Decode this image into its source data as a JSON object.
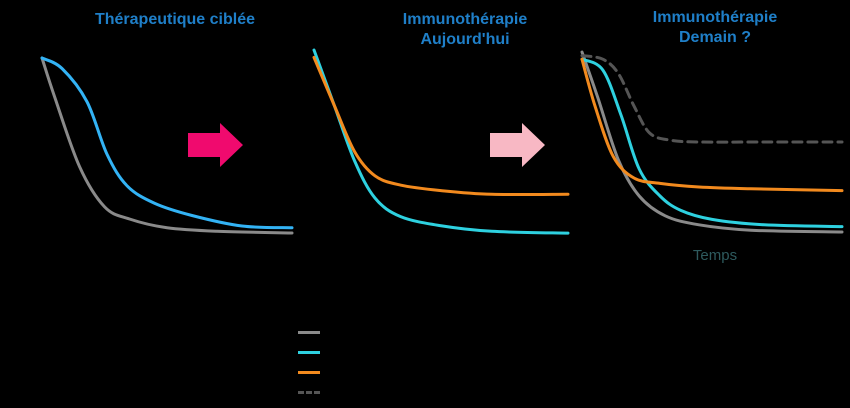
{
  "panels": [
    {
      "title": "Thérapeutique ciblée"
    },
    {
      "title": "Immunothérapie\nAujourd'hui"
    },
    {
      "title": "Immunothérapie\nDemain ?"
    }
  ],
  "x_axis_label": "Temps",
  "arrows": [
    {
      "color": "#f00a6e"
    },
    {
      "color": "#f8b8c4"
    }
  ],
  "colors": {
    "title": "#1f7fc8",
    "gray": "#8a8a8a",
    "blue": "#33b3f5",
    "cyan": "#2ed1e0",
    "orange": "#f28a1e",
    "dashed": "#555555",
    "axis_label": "#2e5a5e"
  },
  "legend": [
    {
      "color": "#8a8a8a",
      "style": "solid"
    },
    {
      "color": "#2ed1e0",
      "style": "solid"
    },
    {
      "color": "#f28a1e",
      "style": "solid"
    },
    {
      "color": "#555555",
      "style": "dashed"
    }
  ],
  "chart_data": [
    {
      "type": "line",
      "title": "Thérapeutique ciblée",
      "xlim": [
        0,
        1
      ],
      "ylim": [
        0,
        1
      ],
      "series": [
        {
          "color": "#8a8a8a",
          "style": "solid",
          "x": [
            0,
            0.05,
            0.15,
            0.25,
            0.35,
            0.5,
            0.7,
            1.0
          ],
          "y": [
            1.0,
            0.78,
            0.38,
            0.15,
            0.08,
            0.03,
            0.01,
            0.0
          ]
        },
        {
          "color": "#33b3f5",
          "style": "solid",
          "x": [
            0,
            0.08,
            0.18,
            0.26,
            0.34,
            0.45,
            0.6,
            0.8,
            1.0
          ],
          "y": [
            1.0,
            0.94,
            0.75,
            0.45,
            0.27,
            0.17,
            0.1,
            0.04,
            0.03
          ]
        }
      ]
    },
    {
      "type": "line",
      "title": "Immunothérapie Aujourd'hui",
      "xlim": [
        0,
        1
      ],
      "ylim": [
        0,
        1
      ],
      "series": [
        {
          "color": "#2ed1e0",
          "style": "solid",
          "x": [
            0,
            0.08,
            0.16,
            0.24,
            0.34,
            0.5,
            0.7,
            1.0
          ],
          "y": [
            1.0,
            0.7,
            0.4,
            0.2,
            0.1,
            0.05,
            0.02,
            0.01
          ]
        },
        {
          "color": "#f28a1e",
          "style": "solid",
          "x": [
            0,
            0.08,
            0.16,
            0.24,
            0.34,
            0.5,
            0.7,
            1.0
          ],
          "y": [
            0.96,
            0.7,
            0.45,
            0.32,
            0.27,
            0.24,
            0.22,
            0.22
          ]
        }
      ]
    },
    {
      "type": "line",
      "title": "Immunothérapie Demain ?",
      "xlabel": "Temps",
      "xlim": [
        0,
        1
      ],
      "ylim": [
        0,
        1
      ],
      "series": [
        {
          "color": "#8a8a8a",
          "style": "solid",
          "x": [
            0,
            0.06,
            0.14,
            0.22,
            0.32,
            0.45,
            0.65,
            1.0
          ],
          "y": [
            1.0,
            0.75,
            0.4,
            0.2,
            0.09,
            0.04,
            0.01,
            0.0
          ]
        },
        {
          "color": "#2ed1e0",
          "style": "solid",
          "x": [
            0,
            0.08,
            0.15,
            0.22,
            0.3,
            0.38,
            0.5,
            0.7,
            1.0
          ],
          "y": [
            0.96,
            0.9,
            0.65,
            0.35,
            0.2,
            0.12,
            0.07,
            0.04,
            0.03
          ]
        },
        {
          "color": "#f28a1e",
          "style": "solid",
          "x": [
            0,
            0.05,
            0.12,
            0.2,
            0.3,
            0.45,
            0.65,
            1.0
          ],
          "y": [
            0.96,
            0.7,
            0.42,
            0.3,
            0.27,
            0.25,
            0.24,
            0.23
          ]
        },
        {
          "color": "#555555",
          "style": "dashed",
          "x": [
            0,
            0.08,
            0.14,
            0.2,
            0.26,
            0.34,
            0.45,
            0.7,
            1.0
          ],
          "y": [
            0.98,
            0.96,
            0.88,
            0.7,
            0.55,
            0.51,
            0.5,
            0.5,
            0.5
          ]
        }
      ]
    }
  ]
}
